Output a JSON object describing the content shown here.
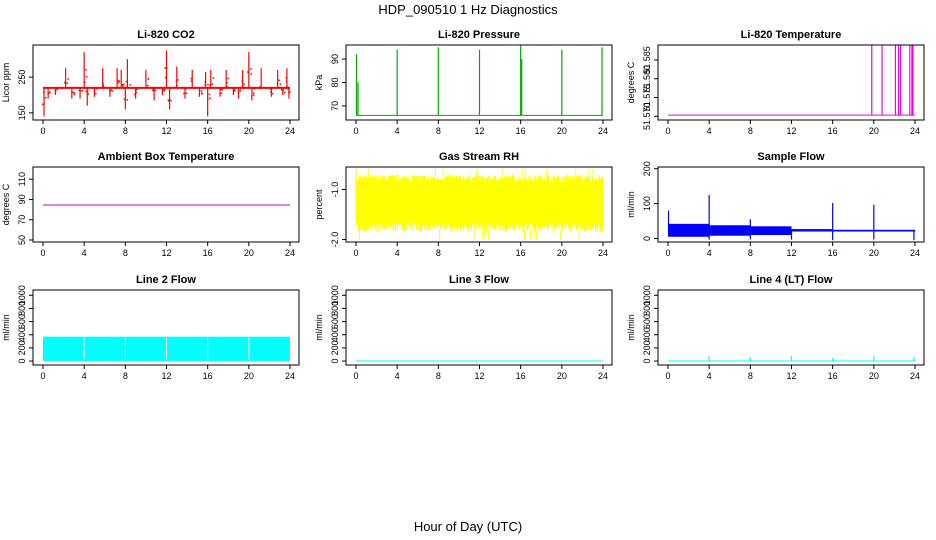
{
  "page": {
    "title": "HDP_090510  1 Hz Diagnostics",
    "xlabel": "Hour of Day (UTC)"
  },
  "chart_data": [
    {
      "type": "line",
      "title": "Li-820 CO2",
      "ylabel": "Licor ppm",
      "color": "#ff0000",
      "x_ticks": [
        "0",
        "4",
        "8",
        "12",
        "16",
        "20",
        "24"
      ],
      "y_ticks": [
        "150",
        "250"
      ],
      "xlim": [
        0,
        24
      ],
      "ylim": [
        130,
        340
      ],
      "baseline": 220,
      "spikes": [
        {
          "x": 0.1,
          "y": 140
        },
        {
          "x": 0.5,
          "y": 190
        },
        {
          "x": 1.2,
          "y": 200
        },
        {
          "x": 2.2,
          "y": 275
        },
        {
          "x": 2.8,
          "y": 190
        },
        {
          "x": 3.6,
          "y": 190
        },
        {
          "x": 4.0,
          "y": 320
        },
        {
          "x": 4.3,
          "y": 170
        },
        {
          "x": 5.0,
          "y": 195
        },
        {
          "x": 5.8,
          "y": 275
        },
        {
          "x": 6.5,
          "y": 195
        },
        {
          "x": 7.2,
          "y": 275
        },
        {
          "x": 7.6,
          "y": 270
        },
        {
          "x": 8.0,
          "y": 160
        },
        {
          "x": 8.2,
          "y": 300
        },
        {
          "x": 9.0,
          "y": 190
        },
        {
          "x": 10.0,
          "y": 270
        },
        {
          "x": 10.8,
          "y": 185
        },
        {
          "x": 11.6,
          "y": 200
        },
        {
          "x": 12.0,
          "y": 325
        },
        {
          "x": 12.3,
          "y": 160
        },
        {
          "x": 13.0,
          "y": 280
        },
        {
          "x": 13.8,
          "y": 190
        },
        {
          "x": 14.5,
          "y": 270
        },
        {
          "x": 15.2,
          "y": 195
        },
        {
          "x": 15.8,
          "y": 265
        },
        {
          "x": 16.0,
          "y": 140
        },
        {
          "x": 16.3,
          "y": 270
        },
        {
          "x": 17.2,
          "y": 195
        },
        {
          "x": 17.8,
          "y": 270
        },
        {
          "x": 18.5,
          "y": 200
        },
        {
          "x": 19.0,
          "y": 190
        },
        {
          "x": 19.4,
          "y": 270
        },
        {
          "x": 20.0,
          "y": 320
        },
        {
          "x": 20.3,
          "y": 185
        },
        {
          "x": 21.2,
          "y": 275
        },
        {
          "x": 22.2,
          "y": 195
        },
        {
          "x": 22.8,
          "y": 270
        },
        {
          "x": 23.3,
          "y": 200
        },
        {
          "x": 23.7,
          "y": 275
        },
        {
          "x": 23.9,
          "y": 190
        }
      ]
    },
    {
      "type": "line",
      "title": "Li-820 Pressure",
      "ylabel": "kPa",
      "color": "#00aa00",
      "x_ticks": [
        "0",
        "4",
        "8",
        "12",
        "16",
        "20",
        "24"
      ],
      "y_ticks": [
        "70",
        "80",
        "90"
      ],
      "xlim": [
        0,
        24
      ],
      "ylim": [
        64,
        96
      ],
      "baseline": 66,
      "spikes": [
        {
          "x": 0.05,
          "y": 92
        },
        {
          "x": 0.2,
          "y": 80
        },
        {
          "x": 4.0,
          "y": 94
        },
        {
          "x": 8.0,
          "y": 95
        },
        {
          "x": 12.0,
          "y": 94
        },
        {
          "x": 16.0,
          "y": 96
        },
        {
          "x": 16.1,
          "y": 90
        },
        {
          "x": 20.0,
          "y": 94
        },
        {
          "x": 23.9,
          "y": 95
        }
      ]
    },
    {
      "type": "line",
      "title": "Li-820 Temperature",
      "ylabel": "degrees C",
      "color": "#ee00ee",
      "x_ticks": [
        "0",
        "4",
        "8",
        "12",
        "16",
        "20",
        "24"
      ],
      "y_ticks": [
        "51.570",
        "51.575",
        "51.580",
        "51.585"
      ],
      "xlim": [
        0,
        24
      ],
      "ylim": [
        51.569,
        51.589
      ],
      "baseline": 51.5703,
      "spikes": [
        {
          "x": 19.8,
          "y": 51.589
        },
        {
          "x": 20.8,
          "y": 51.589
        },
        {
          "x": 22.1,
          "y": 51.589
        },
        {
          "x": 22.4,
          "y": 51.589
        },
        {
          "x": 22.6,
          "y": 51.589
        },
        {
          "x": 23.5,
          "y": 51.589
        },
        {
          "x": 23.7,
          "y": 51.589
        },
        {
          "x": 23.8,
          "y": 51.589
        }
      ]
    },
    {
      "type": "line",
      "title": "Ambient Box Temperature",
      "ylabel": "degrees C",
      "color": "#cc00cc",
      "x_ticks": [
        "0",
        "4",
        "8",
        "12",
        "16",
        "20",
        "24"
      ],
      "y_ticks": [
        "50",
        "70",
        "90",
        "110"
      ],
      "xlim": [
        0,
        24
      ],
      "ylim": [
        48,
        122
      ],
      "baseline": 84.5,
      "band": [
        84,
        85
      ]
    },
    {
      "type": "line",
      "title": "Gas Stream RH",
      "ylabel": "percent",
      "color": "#ffff00",
      "x_ticks": [
        "0",
        "4",
        "8",
        "12",
        "16",
        "20",
        "24"
      ],
      "y_ticks": [
        "-2.0",
        "-1.0"
      ],
      "xlim": [
        0,
        24
      ],
      "ylim": [
        -2.05,
        -0.55
      ],
      "band": [
        -1.85,
        -0.7
      ],
      "core": [
        -1.65,
        -0.85
      ]
    },
    {
      "type": "line",
      "title": "Sample Flow",
      "ylabel": "ml/min",
      "color": "#0000ff",
      "x_ticks": [
        "0",
        "4",
        "8",
        "12",
        "16",
        "20",
        "24"
      ],
      "y_ticks": [
        "0",
        "100",
        "200"
      ],
      "xlim": [
        0,
        24
      ],
      "ylim": [
        -10,
        205
      ],
      "segments": [
        {
          "x0": 0,
          "x1": 4,
          "lo": 5,
          "hi": 42
        },
        {
          "x0": 4,
          "x1": 8,
          "lo": 8,
          "hi": 38
        },
        {
          "x0": 8,
          "x1": 12,
          "lo": 10,
          "hi": 35
        },
        {
          "x0": 12,
          "x1": 16,
          "lo": 20,
          "hi": 27
        },
        {
          "x0": 16,
          "x1": 24,
          "lo": 20,
          "hi": 25
        }
      ],
      "spikes": [
        {
          "x": 0.05,
          "y": 80
        },
        {
          "x": 4.0,
          "y": 125
        },
        {
          "x": 8.0,
          "y": 55
        },
        {
          "x": 16.0,
          "y": 102
        },
        {
          "x": 20.0,
          "y": 97
        }
      ],
      "dips": [
        {
          "x": 4.0,
          "y": -3
        },
        {
          "x": 8.0,
          "y": -3
        },
        {
          "x": 12.0,
          "y": -3
        },
        {
          "x": 16.0,
          "y": -5
        },
        {
          "x": 20.0,
          "y": -3
        },
        {
          "x": 23.9,
          "y": -5
        }
      ]
    },
    {
      "type": "line",
      "title": "Line 2 Flow",
      "ylabel": "ml/min",
      "color": "#00ffff",
      "x_ticks": [
        "0",
        "4",
        "8",
        "12",
        "16",
        "20",
        "24"
      ],
      "y_ticks": [
        "0",
        "200",
        "400",
        "600",
        "800",
        "1000"
      ],
      "xlim": [
        0,
        24
      ],
      "ylim": [
        -60,
        1080
      ],
      "band": [
        0,
        370
      ],
      "gaps": [
        4,
        8,
        12,
        16,
        20
      ]
    },
    {
      "type": "line",
      "title": "Line 3 Flow",
      "ylabel": "ml/min",
      "color": "#00ffff",
      "x_ticks": [
        "0",
        "4",
        "8",
        "12",
        "16",
        "20",
        "24"
      ],
      "y_ticks": [
        "0",
        "200",
        "400",
        "600",
        "800",
        "1000"
      ],
      "xlim": [
        0,
        24
      ],
      "ylim": [
        -60,
        1080
      ],
      "baseline": 0
    },
    {
      "type": "line",
      "title": "Line 4 (LT) Flow",
      "ylabel": "ml/min",
      "color": "#00ffff",
      "x_ticks": [
        "0",
        "4",
        "8",
        "12",
        "16",
        "20",
        "24"
      ],
      "y_ticks": [
        "0",
        "200",
        "400",
        "600",
        "800",
        "1000"
      ],
      "xlim": [
        0,
        24
      ],
      "ylim": [
        -60,
        1080
      ],
      "baseline": 0,
      "spikes": [
        {
          "x": 4,
          "y": 80
        },
        {
          "x": 8,
          "y": 60
        },
        {
          "x": 12,
          "y": 80
        },
        {
          "x": 16,
          "y": 50
        },
        {
          "x": 20,
          "y": 80
        },
        {
          "x": 23.9,
          "y": 60
        }
      ]
    }
  ]
}
